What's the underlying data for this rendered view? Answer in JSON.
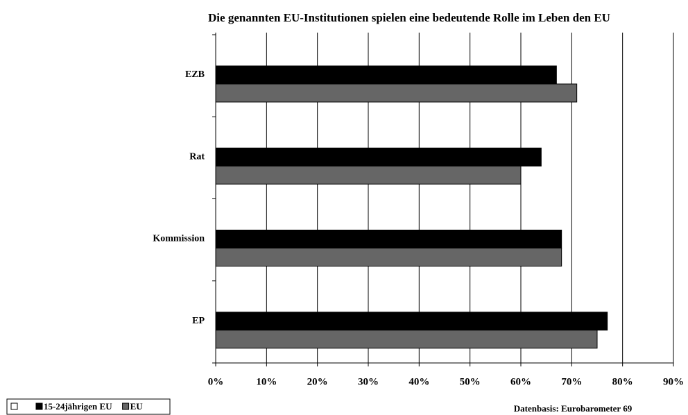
{
  "chart_data": {
    "type": "hbar",
    "title": "Die genannten EU-Institutionen spielen eine bedeutende Rolle im Leben den EU",
    "categories": [
      "EZB",
      "Rat",
      "Kommission",
      "EP"
    ],
    "series": [
      {
        "name": "15-24jährigen EU",
        "color": "#000000",
        "values": [
          67,
          64,
          68,
          77
        ]
      },
      {
        "name": "EU",
        "color": "#666666",
        "values": [
          71,
          60,
          68,
          75
        ]
      }
    ],
    "xlim": [
      0,
      90
    ],
    "xticks": [
      {
        "value": 0,
        "label": "0%"
      },
      {
        "value": 10,
        "label": "10%"
      },
      {
        "value": 20,
        "label": "20%"
      },
      {
        "value": 30,
        "label": "30%"
      },
      {
        "value": 40,
        "label": "40%"
      },
      {
        "value": 50,
        "label": "50%"
      },
      {
        "value": 60,
        "label": "60%"
      },
      {
        "value": 70,
        "label": "70%"
      },
      {
        "value": 80,
        "label": "80%"
      },
      {
        "value": 90,
        "label": "90%"
      }
    ],
    "grid": true,
    "note": "Datenbasis: Eurobarometer 69"
  }
}
